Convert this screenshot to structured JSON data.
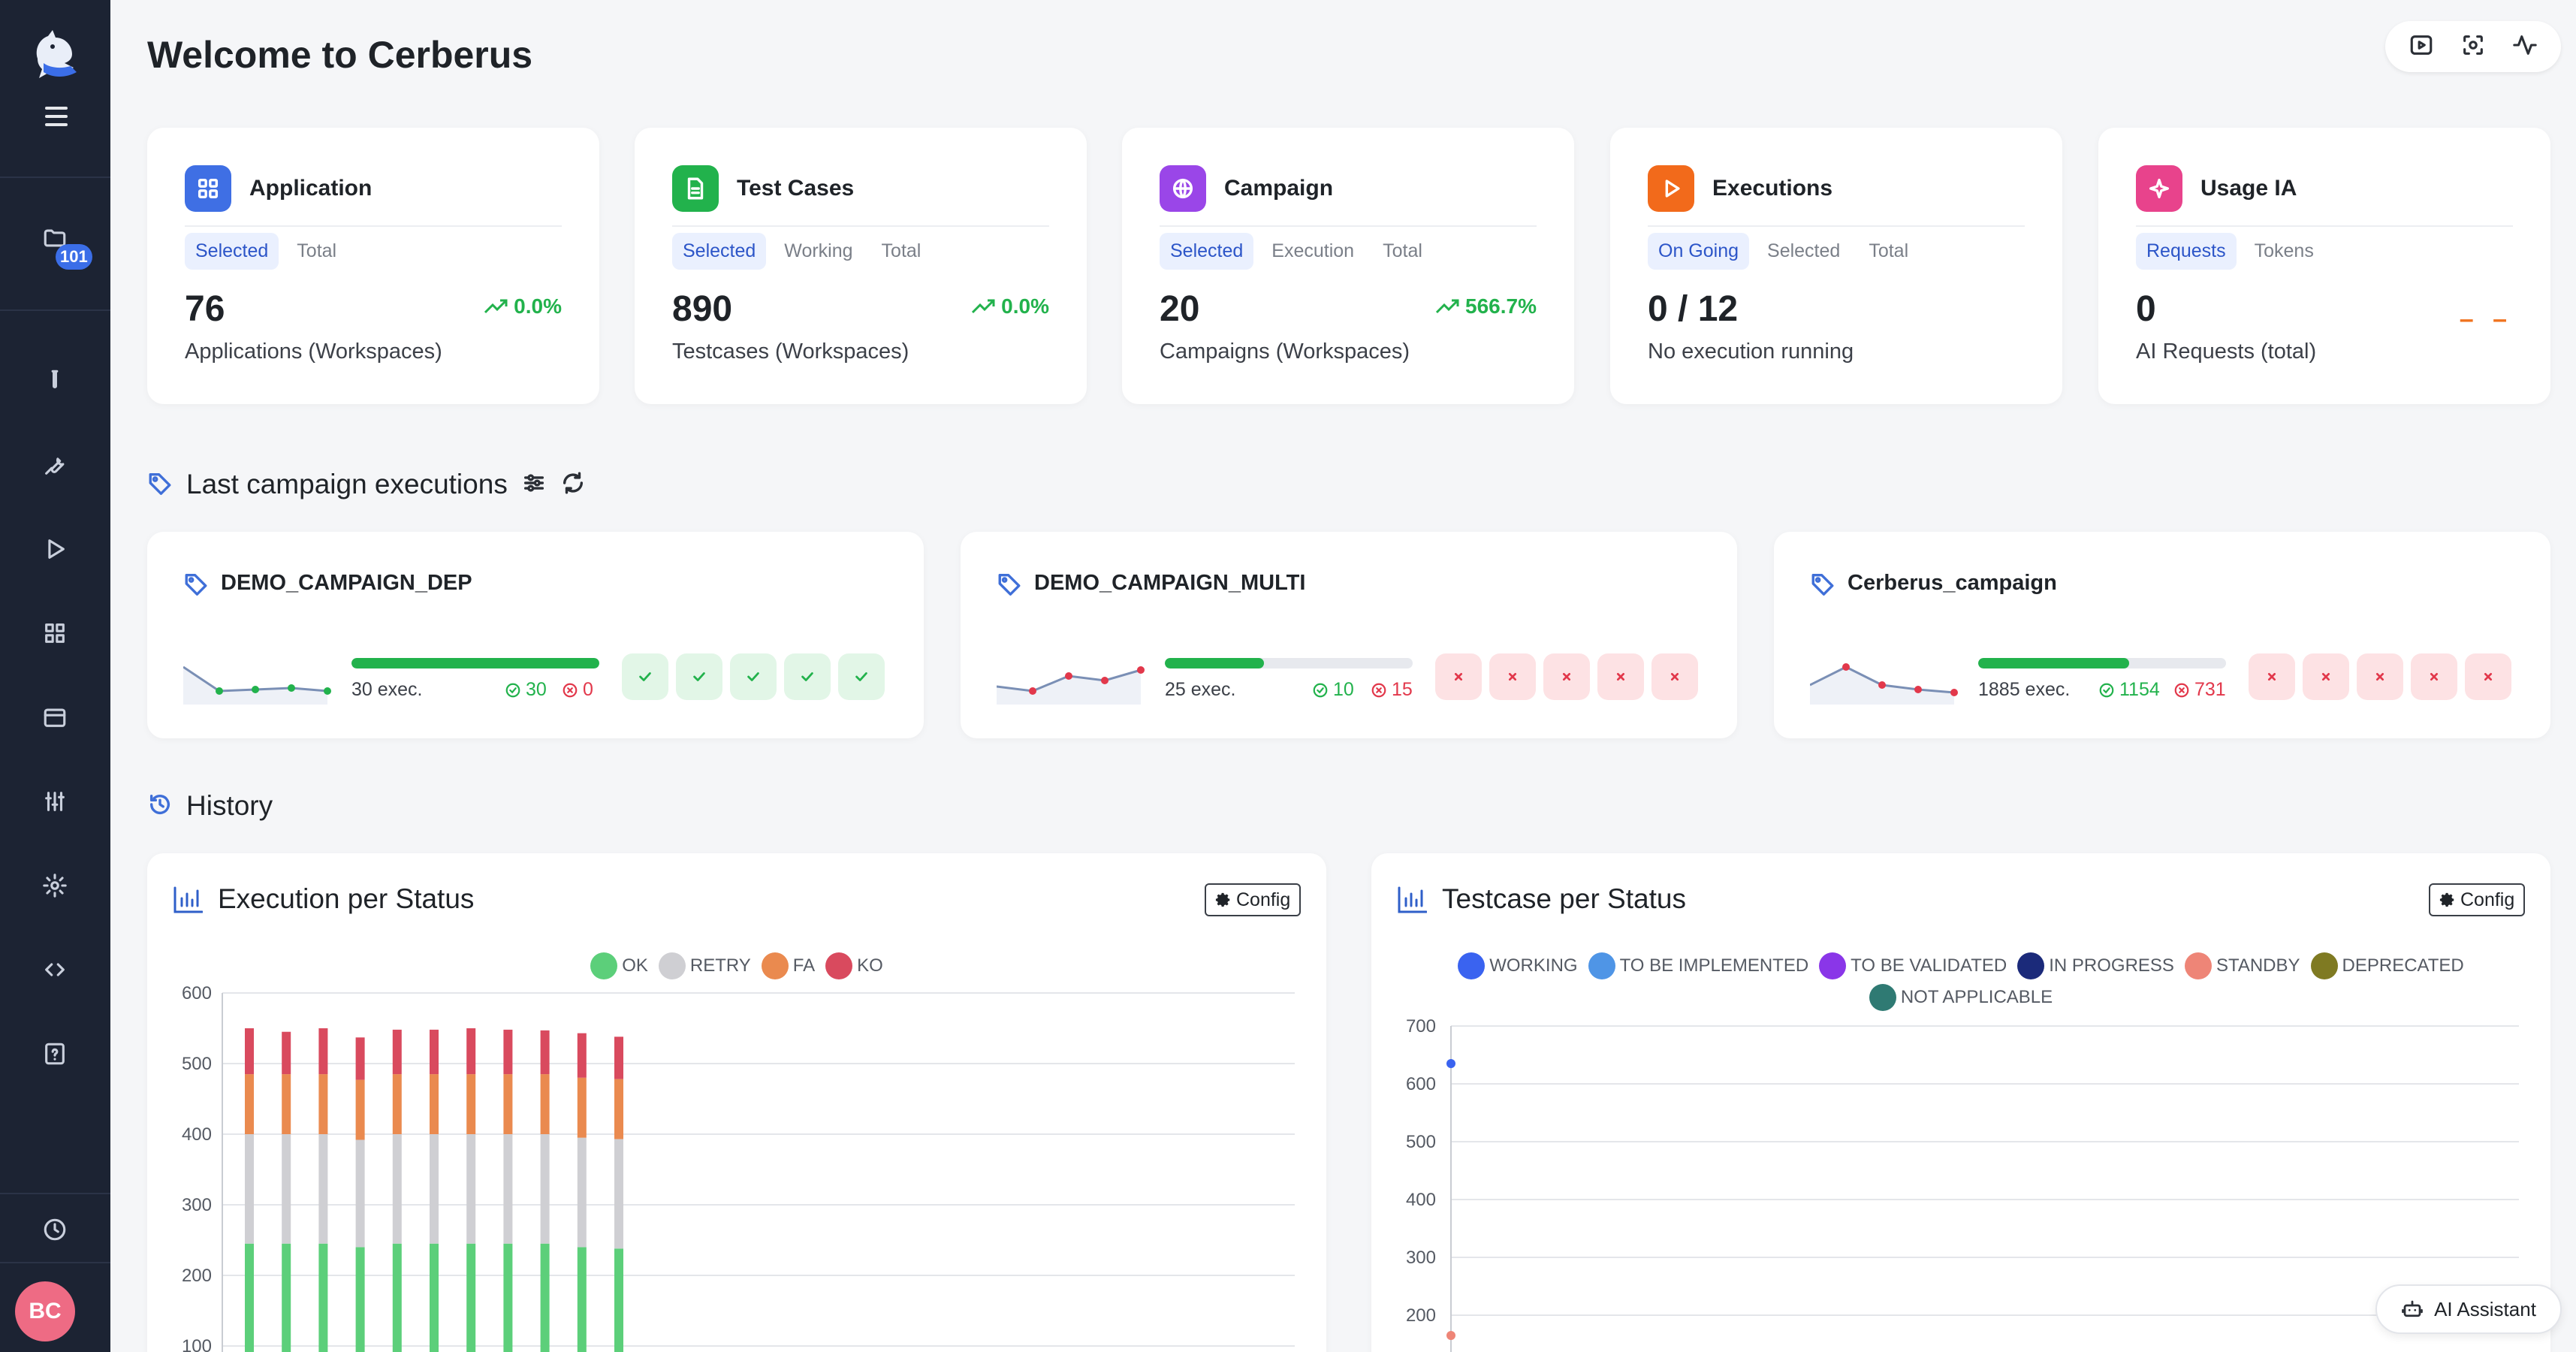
{
  "header": {
    "title": "Welcome to Cerberus"
  },
  "sidebar": {
    "folder_badge": "101",
    "avatar_initials": "BC",
    "items": [
      {
        "icon": "folder-icon"
      },
      {
        "icon": "test-tube-icon"
      },
      {
        "icon": "wrench-icon"
      },
      {
        "icon": "play-icon"
      },
      {
        "icon": "grid-icon"
      },
      {
        "icon": "calendar-icon"
      },
      {
        "icon": "sliders-icon"
      },
      {
        "icon": "settings-icon"
      },
      {
        "icon": "code-icon"
      },
      {
        "icon": "help-icon"
      },
      {
        "icon": "clock-icon"
      }
    ]
  },
  "stats": [
    {
      "title": "Application",
      "tabs": [
        "Selected",
        "Total"
      ],
      "active": 0,
      "value": "76",
      "trend": "0.0%",
      "sub": "Applications (Workspaces)",
      "color": "#3f6fe4",
      "icon": "grid-icon"
    },
    {
      "title": "Test Cases",
      "tabs": [
        "Selected",
        "Working",
        "Total"
      ],
      "active": 0,
      "value": "890",
      "trend": "0.0%",
      "sub": "Testcases (Workspaces)",
      "color": "#22b24c",
      "icon": "document-icon"
    },
    {
      "title": "Campaign",
      "tabs": [
        "Selected",
        "Execution",
        "Total"
      ],
      "active": 0,
      "value": "20",
      "trend": "566.7%",
      "sub": "Campaigns (Workspaces)",
      "color": "#9a46e8",
      "icon": "globe-icon"
    },
    {
      "title": "Executions",
      "tabs": [
        "On Going",
        "Selected",
        "Total"
      ],
      "active": 0,
      "value": "0 / 12",
      "trend": "",
      "sub": "No execution running",
      "color": "#f26a1b",
      "icon": "play-icon"
    },
    {
      "title": "Usage IA",
      "tabs": [
        "Requests",
        "Tokens"
      ],
      "active": 0,
      "value": "0",
      "trend": "– –",
      "sub": "AI Requests (total)",
      "color": "#e8438c",
      "icon": "sparkle-icon"
    }
  ],
  "campaigns_section": {
    "title": "Last campaign executions"
  },
  "campaigns": [
    {
      "name": "DEMO_CAMPAIGN_DEP",
      "exec": "30 exec.",
      "ok": "30",
      "ko": "0",
      "ok_ratio": 1.0,
      "runs": [
        "ok",
        "ok",
        "ok",
        "ok",
        "ok"
      ]
    },
    {
      "name": "DEMO_CAMPAIGN_MULTI",
      "exec": "25 exec.",
      "ok": "10",
      "ko": "15",
      "ok_ratio": 0.4,
      "runs": [
        "ko",
        "ko",
        "ko",
        "ko",
        "ko"
      ]
    },
    {
      "name": "Cerberus_campaign",
      "exec": "1885 exec.",
      "ok": "1154",
      "ko": "731",
      "ok_ratio": 0.61,
      "runs": [
        "ko",
        "ko",
        "ko",
        "ko",
        "ko"
      ]
    }
  ],
  "history": {
    "title": "History"
  },
  "charts": {
    "config_label": "Config",
    "execution": {
      "title": "Execution per Status"
    },
    "testcase": {
      "title": "Testcase per Status"
    }
  },
  "chart_data": [
    {
      "type": "bar",
      "title": "Execution per Status",
      "stacked": true,
      "ylim": [
        0,
        600
      ],
      "yticks": [
        100,
        200,
        300,
        400,
        500,
        600
      ],
      "legend_position": "top",
      "series": [
        {
          "name": "OK",
          "color": "#5ccf7a",
          "values": [
            245,
            245,
            245,
            240,
            245,
            245,
            245,
            245,
            245,
            240,
            238
          ]
        },
        {
          "name": "RETRY",
          "color": "#cfcfd3",
          "values": [
            155,
            155,
            155,
            152,
            155,
            155,
            155,
            155,
            155,
            155,
            155
          ]
        },
        {
          "name": "FA",
          "color": "#ea8a4f",
          "values": [
            85,
            85,
            85,
            85,
            85,
            85,
            85,
            85,
            85,
            85,
            85
          ]
        },
        {
          "name": "KO",
          "color": "#d94a5e",
          "values": [
            65,
            60,
            65,
            60,
            63,
            63,
            65,
            63,
            62,
            63,
            60
          ]
        }
      ]
    },
    {
      "type": "line",
      "title": "Testcase per Status",
      "ylim": [
        150,
        700
      ],
      "yticks": [
        200,
        300,
        400,
        500,
        600,
        700
      ],
      "legend_position": "top",
      "series": [
        {
          "name": "WORKING",
          "color": "#3a63f0",
          "values": [
            635
          ]
        },
        {
          "name": "TO BE IMPLEMENTED",
          "color": "#4f95e6",
          "values": []
        },
        {
          "name": "TO BE VALIDATED",
          "color": "#8a36e8",
          "values": []
        },
        {
          "name": "IN PROGRESS",
          "color": "#1b2a7a",
          "values": []
        },
        {
          "name": "STANDBY",
          "color": "#ee8577",
          "values": [
            165
          ]
        },
        {
          "name": "DEPRECATED",
          "color": "#7f7a22",
          "values": []
        },
        {
          "name": "NOT APPLICABLE",
          "color": "#2f7a73",
          "values": []
        }
      ]
    }
  ],
  "ai_assistant": {
    "label": "AI Assistant"
  }
}
